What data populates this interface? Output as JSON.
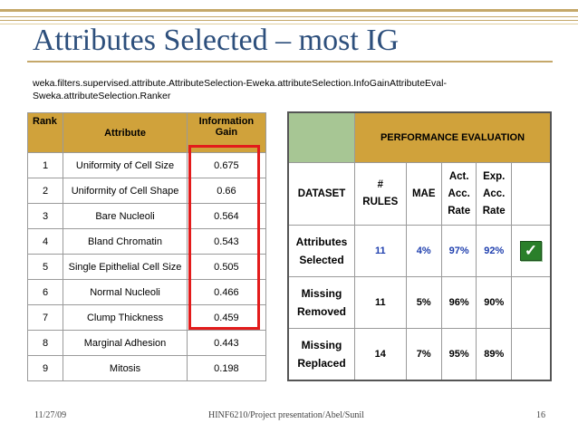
{
  "title": "Attributes Selected – most IG",
  "subtitle": "weka.filters.supervised.attribute.AttributeSelection-Eweka.attributeSelection.InfoGainAttributeEval-Sweka.attributeSelection.Ranker",
  "rank_table": {
    "headers": {
      "rank": "Rank",
      "attribute": "Attribute",
      "gain_line1": "Information",
      "gain_line2": "Gain"
    },
    "rows": [
      {
        "rank": "1",
        "attribute": "Uniformity of Cell Size",
        "gain": "0.675"
      },
      {
        "rank": "2",
        "attribute": "Uniformity of Cell Shape",
        "gain": "0.66"
      },
      {
        "rank": "3",
        "attribute": "Bare Nucleoli",
        "gain": "0.564"
      },
      {
        "rank": "4",
        "attribute": "Bland Chromatin",
        "gain": "0.543"
      },
      {
        "rank": "5",
        "attribute": "Single Epithelial Cell Size",
        "gain": "0.505"
      },
      {
        "rank": "6",
        "attribute": "Normal Nucleoli",
        "gain": "0.466"
      },
      {
        "rank": "7",
        "attribute": "Clump Thickness",
        "gain": "0.459"
      },
      {
        "rank": "8",
        "attribute": "Marginal Adhesion",
        "gain": "0.443"
      },
      {
        "rank": "9",
        "attribute": "Mitosis",
        "gain": "0.198"
      }
    ]
  },
  "perf_table": {
    "heading": "PERFORMANCE EVALUATION",
    "columns": {
      "dataset": "DATASET",
      "rules_l1": "#",
      "rules_l2": "RULES",
      "mae": "MAE",
      "act_l1": "Act.",
      "act_l2": "Acc.",
      "act_l3": "Rate",
      "exp_l1": "Exp.",
      "exp_l2": "Acc.",
      "exp_l3": "Rate"
    },
    "rows": [
      {
        "label_l1": "Attributes",
        "label_l2": "Selected",
        "rules": "11",
        "mae": "4%",
        "act": "97%",
        "exp": "92%",
        "checked": true
      },
      {
        "label_l1": "Missing",
        "label_l2": "Removed",
        "rules": "11",
        "mae": "5%",
        "act": "96%",
        "exp": "90%",
        "checked": false
      },
      {
        "label_l1": "Missing",
        "label_l2": "Replaced",
        "rules": "14",
        "mae": "7%",
        "act": "95%",
        "exp": "89%",
        "checked": false
      }
    ],
    "check_glyph": "✓"
  },
  "footer": {
    "date": "11/27/09",
    "center": "HINF6210/Project presentation/Abel/Sunil",
    "page": "16"
  },
  "colors": {
    "title": "#2d4f7c",
    "header_orange": "#d0a23b",
    "header_green": "#a7c694",
    "highlight_red": "#e31b1b",
    "value_blue": "#1f3fae",
    "check_green": "#2a7f2a"
  }
}
